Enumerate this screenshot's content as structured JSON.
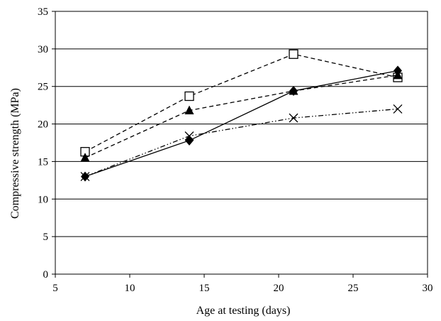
{
  "chart_data": {
    "type": "line",
    "xlabel": "Age at testing (days)",
    "ylabel": "Compressive strength (MPa)",
    "xlim": [
      5,
      30
    ],
    "ylim": [
      0,
      35
    ],
    "xticks": [
      5,
      10,
      15,
      20,
      25,
      30
    ],
    "yticks": [
      0,
      5,
      10,
      15,
      20,
      25,
      30,
      35
    ],
    "grid": "horizontal",
    "legend": "none",
    "series": [
      {
        "marker": "square",
        "line_style": "dashed",
        "color": "#000000",
        "x": [
          7,
          14,
          21,
          28
        ],
        "y": [
          16.3,
          23.7,
          29.3,
          26.2
        ]
      },
      {
        "marker": "triangle",
        "line_style": "dashed",
        "color": "#000000",
        "x": [
          7,
          14,
          21,
          28
        ],
        "y": [
          15.5,
          21.8,
          24.4,
          26.5
        ]
      },
      {
        "marker": "diamond",
        "line_style": "solid",
        "color": "#000000",
        "x": [
          7,
          14,
          21,
          28
        ],
        "y": [
          13.0,
          17.8,
          24.4,
          27.1
        ]
      },
      {
        "marker": "x",
        "line_style": "dash-dot-dot",
        "color": "#000000",
        "x": [
          7,
          14,
          21,
          28
        ],
        "y": [
          13.0,
          18.4,
          20.8,
          22.0
        ]
      }
    ]
  }
}
